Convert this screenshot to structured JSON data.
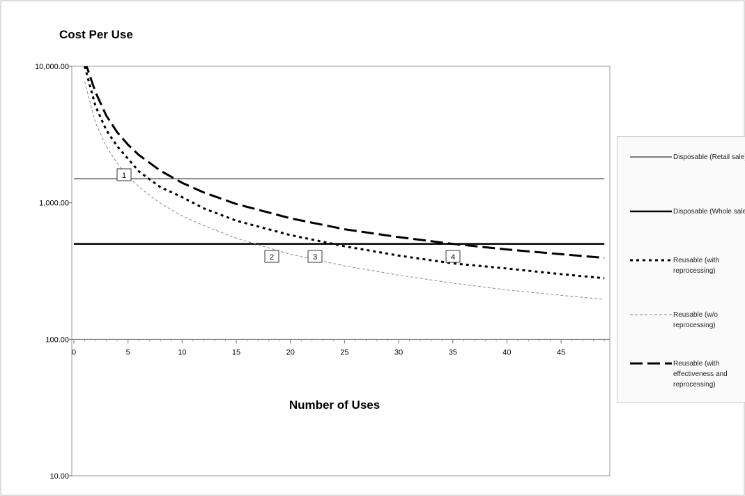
{
  "chart_data": {
    "type": "line",
    "title": "Cost Per Use",
    "x_label": "Number of Uses",
    "x": [
      0,
      1,
      2,
      3,
      4,
      5,
      6,
      8,
      10,
      12,
      15,
      20,
      25,
      30,
      35,
      40,
      45,
      49
    ],
    "series": [
      {
        "name": "Disposable (Retail sale)",
        "color": "#000000",
        "values": [
          1500,
          1500,
          1500,
          1500,
          1500,
          1500,
          1500,
          1500,
          1500,
          1500,
          1500,
          1500,
          1500,
          1500,
          1500,
          1500,
          1500,
          1500
        ]
      },
      {
        "name": "Disposable (Whole sale)",
        "color": "#000000",
        "values": [
          500,
          500,
          500,
          500,
          500,
          500,
          500,
          500,
          500,
          500,
          500,
          500,
          500,
          500,
          500,
          500,
          500,
          500
        ]
      },
      {
        "name": "Reusable (with reprocessing)",
        "color": "#000000",
        "values": [
          null,
          10000,
          5100,
          3400,
          2600,
          2100,
          1700,
          1300,
          1100,
          910,
          740,
          580,
          480,
          410,
          360,
          330,
          300,
          280
        ]
      },
      {
        "name": "Reusable (w/o reprocessing)",
        "color": "#888888",
        "values": [
          null,
          7700,
          3850,
          2580,
          1950,
          1560,
          1310,
          990,
          800,
          680,
          550,
          420,
          345,
          295,
          258,
          230,
          210,
          196
        ]
      },
      {
        "name": "Reusable (with effectiveness and reprocessing)",
        "color": "#000000",
        "values": [
          null,
          11000,
          6450,
          4340,
          3290,
          2660,
          2240,
          1715,
          1400,
          1190,
          980,
          770,
          640,
          560,
          500,
          455,
          420,
          395
        ]
      }
    ],
    "annotations": [
      "1",
      "2",
      "3",
      "4"
    ],
    "log_y": true,
    "xlim": [
      0,
      49.5
    ],
    "ylim": [
      10,
      10000
    ],
    "xticks": [
      0,
      5,
      10,
      15,
      20,
      25,
      30,
      35,
      40,
      45
    ],
    "yticks": [
      {
        "value": 10,
        "label": "10.00"
      },
      {
        "value": 100,
        "label": "100.00"
      },
      {
        "value": 1000,
        "label": "1,000.00"
      },
      {
        "value": 10000,
        "label": "10,000.00"
      }
    ],
    "legend": "right"
  }
}
